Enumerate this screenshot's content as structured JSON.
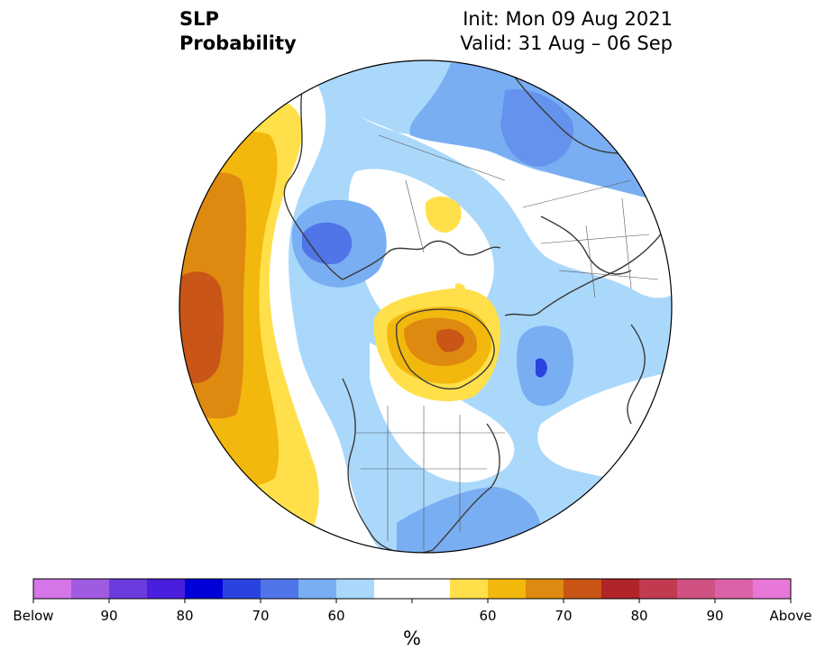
{
  "title": {
    "variable": "SLP",
    "quantity": "Probability",
    "init": "Init: Mon 09 Aug 2021",
    "valid": "Valid: 31 Aug – 06 Sep"
  },
  "colorbar": {
    "units": "%",
    "colors": [
      "#d675e8",
      "#a05be3",
      "#6c3be0",
      "#4a1ede",
      "#0000d8",
      "#2a43e0",
      "#4f75e8",
      "#7aaef2",
      "#aad8fb",
      "#ffffff",
      "#ffffff",
      "#ffe04a",
      "#f3b80d",
      "#de8a10",
      "#c95516",
      "#b0242a",
      "#c23a50",
      "#cf5283",
      "#dc62a8",
      "#e878d8"
    ],
    "labels": [
      {
        "text": "Below",
        "index": 0
      },
      {
        "text": "90",
        "index": 2
      },
      {
        "text": "80",
        "index": 4
      },
      {
        "text": "70",
        "index": 6
      },
      {
        "text": "60",
        "index": 8
      },
      {
        "text": "60",
        "index": 12
      },
      {
        "text": "70",
        "index": 14
      },
      {
        "text": "80",
        "index": 16
      },
      {
        "text": "90",
        "index": 18
      },
      {
        "text": "Above",
        "index": 20
      }
    ]
  }
}
